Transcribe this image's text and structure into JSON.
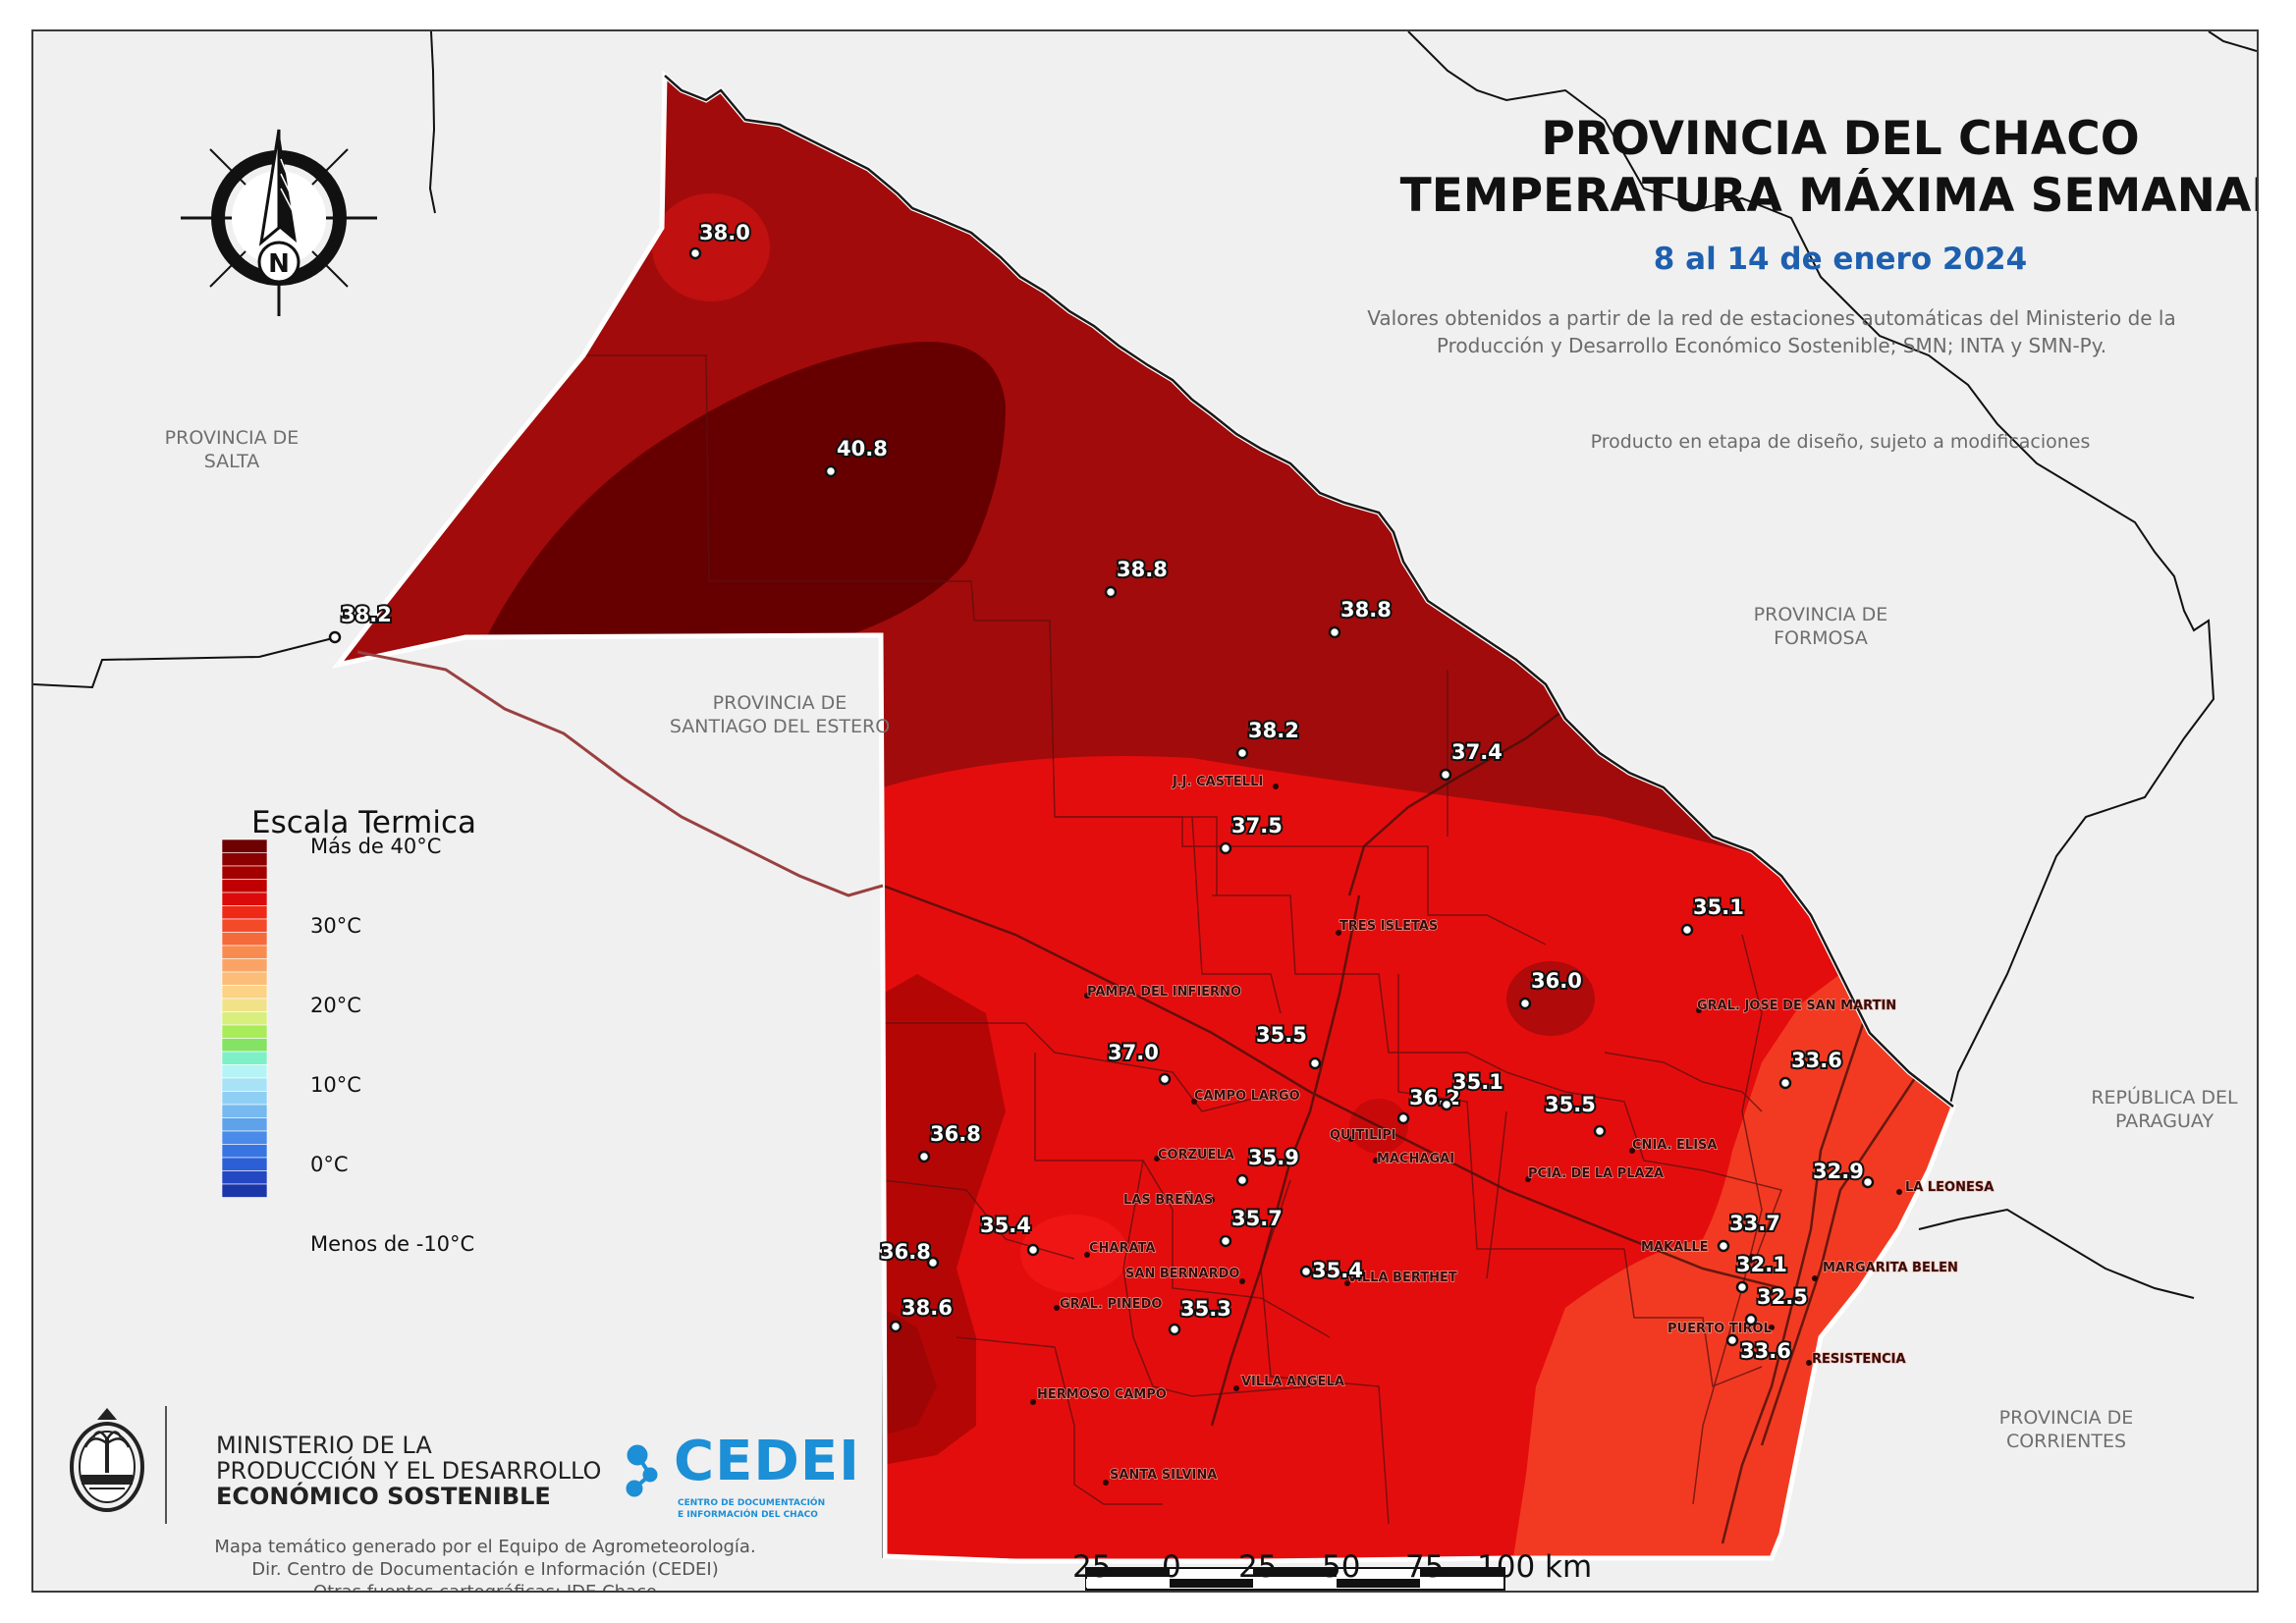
{
  "title_line1": "PROVINCIA DEL CHACO",
  "title_line2": "TEMPERATURA MÁXIMA SEMANAL",
  "period": "8 al 14 de enero 2024",
  "note_line1": "Valores obtenidos a partir de la red de estaciones automáticas del Ministerio de la",
  "note_line2": "Producción y Desarrollo Económico Sostenible; SMN; INTA y SMN-Py.",
  "draft_note": "Producto en etapa de diseño, sujeto a modificaciones",
  "provinces": {
    "salta": [
      "PROVINCIA DE",
      "SALTA"
    ],
    "santiago": [
      "PROVINCIA DE",
      "SANTIAGO DEL ESTERO"
    ],
    "formosa": [
      "PROVINCIA DE",
      "FORMOSA"
    ],
    "paraguay": [
      "REPÚBLICA DEL",
      "PARAGUAY"
    ],
    "corrientes": [
      "PROVINCIA DE",
      "CORRIENTES"
    ]
  },
  "legend": {
    "title": "Escala Termica",
    "labels": [
      "Más de 40°C",
      "30°C",
      "20°C",
      "10°C",
      "0°C",
      "Menos de -10°C"
    ],
    "colors": [
      "#6d0000",
      "#8c0000",
      "#a40000",
      "#c00000",
      "#dc0a0a",
      "#ee2a16",
      "#f34a2a",
      "#f56a3a",
      "#f88c50",
      "#f9a466",
      "#fbbd78",
      "#fcd286",
      "#f1e28a",
      "#d8ee7d",
      "#a8ec5a",
      "#84e264",
      "#7ef0c8",
      "#b4f4f4",
      "#a8e2f6",
      "#8fcff4",
      "#76b9ef",
      "#5ea2ea",
      "#4a8bea",
      "#3874e2",
      "#2c5ed6",
      "#2448c2",
      "#1b36a8"
    ]
  },
  "stations": [
    {
      "value": "38.0"
    },
    {
      "value": "40.8"
    },
    {
      "value": "38.2"
    },
    {
      "value": "38.8"
    },
    {
      "value": "38.8"
    },
    {
      "value": "38.2"
    },
    {
      "value": "37.4"
    },
    {
      "value": "37.5"
    },
    {
      "value": "35.1"
    },
    {
      "value": "36.0"
    },
    {
      "value": "35.5"
    },
    {
      "value": "37.0"
    },
    {
      "value": "33.6"
    },
    {
      "value": "36.2"
    },
    {
      "value": "35.1"
    },
    {
      "value": "35.5"
    },
    {
      "value": "36.8"
    },
    {
      "value": "35.9"
    },
    {
      "value": "32.9"
    },
    {
      "value": "35.7"
    },
    {
      "value": "35.4"
    },
    {
      "value": "33.7"
    },
    {
      "value": "36.8"
    },
    {
      "value": "32.1"
    },
    {
      "value": "35.4"
    },
    {
      "value": "38.6"
    },
    {
      "value": "35.3"
    },
    {
      "value": "32.5"
    },
    {
      "value": "33.6"
    }
  ],
  "towns": [
    "J.J. CASTELLI",
    "TRES ISLETAS",
    "PAMPA DEL INFIERNO",
    "GRAL. JOSE DE SAN MARTIN",
    "CAMPO LARGO",
    "QUITILIPI",
    "MACHAGAI",
    "CNIA. ELISA",
    "PCIA. DE LA PLAZA",
    "CORZUELA",
    "LAS BREÑAS",
    "LA LEONESA",
    "CHARATA",
    "SAN BERNARDO",
    "VILLA BERTHET",
    "MAKALLE",
    "MARGARITA BELEN",
    "GRAL. PINEDO",
    "PUERTO TIROL",
    "RESISTENCIA",
    "VILLA ANGELA",
    "HERMOSO CAMPO",
    "SANTA SILVINA"
  ],
  "north_label": "N",
  "ministry": [
    "MINISTERIO DE LA",
    "PRODUCCIÓN Y EL DESARROLLO",
    "ECONÓMICO SOSTENIBLE"
  ],
  "cedei": {
    "name": "CEDEI",
    "sub1": "CENTRO DE DOCUMENTACIÓN",
    "sub2": "E INFORMACIÓN DEL CHACO"
  },
  "credits": [
    "Mapa temático generado por el Equipo de Agrometeorología.",
    "Dir. Centro de Documentación e Información (CEDEI)",
    "Otras fuentes cartográficas: IDE Chaco"
  ],
  "scale_labels": [
    "25",
    "0",
    "25",
    "50",
    "75",
    "100 km"
  ]
}
